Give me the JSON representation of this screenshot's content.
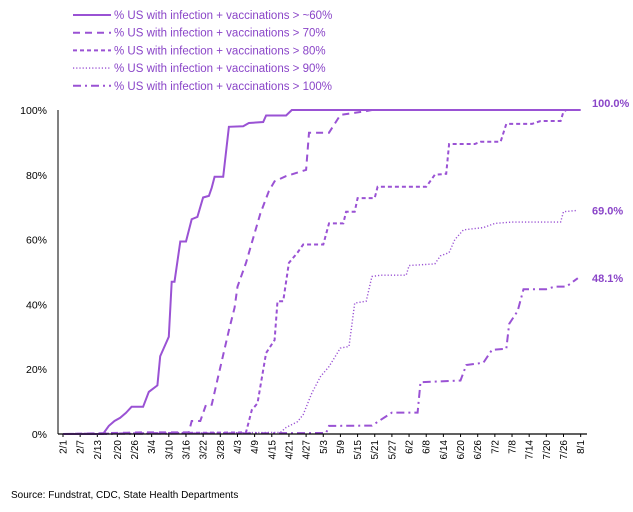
{
  "chart_data": {
    "type": "line",
    "title": "",
    "xlabel": "",
    "ylabel": "",
    "ylim": [
      0,
      100
    ],
    "y_ticks": [
      "0%",
      "20%",
      "40%",
      "60%",
      "80%",
      "100%"
    ],
    "x_ticks": [
      "2/1",
      "2/7",
      "2/13",
      "2/20",
      "2/26",
      "3/4",
      "3/10",
      "3/16",
      "3/22",
      "3/28",
      "4/3",
      "4/9",
      "4/15",
      "4/21",
      "4/27",
      "5/3",
      "5/9",
      "5/15",
      "5/21",
      "5/27",
      "6/2",
      "6/8",
      "6/14",
      "6/20",
      "6/26",
      "7/2",
      "7/8",
      "7/14",
      "7/20",
      "7/26",
      "8/1"
    ],
    "grid": false,
    "legend_position": "top-left",
    "line_color": "#9a52d4",
    "series": [
      {
        "name": "% US with infection + vaccinations > ~60%",
        "style": "solid",
        "end_label": "100.0%",
        "points": [
          [
            "2/1",
            0
          ],
          [
            "2/15",
            0
          ],
          [
            "2/17",
            2.5
          ],
          [
            "2/19",
            4
          ],
          [
            "2/21",
            5
          ],
          [
            "2/23",
            6.5
          ],
          [
            "2/25",
            8.4
          ],
          [
            "3/1",
            8.4
          ],
          [
            "3/3",
            13
          ],
          [
            "3/6",
            15
          ],
          [
            "3/7",
            24
          ],
          [
            "3/10",
            30
          ],
          [
            "3/11",
            47
          ],
          [
            "3/12",
            47
          ],
          [
            "3/14",
            59.4
          ],
          [
            "3/16",
            59.4
          ],
          [
            "3/18",
            66.3
          ],
          [
            "3/20",
            67
          ],
          [
            "3/22",
            73
          ],
          [
            "3/24",
            73.5
          ],
          [
            "3/25",
            76
          ],
          [
            "3/26",
            79.4
          ],
          [
            "3/29",
            79.4
          ],
          [
            "3/31",
            94.8
          ],
          [
            "4/5",
            95
          ],
          [
            "4/7",
            96
          ],
          [
            "4/12",
            96.3
          ],
          [
            "4/13",
            98.3
          ],
          [
            "4/20",
            98.3
          ],
          [
            "4/22",
            100
          ],
          [
            "8/1",
            100
          ]
        ]
      },
      {
        "name": "% US with infection + vaccinations > 70%",
        "style": "long-dash",
        "end_label": "",
        "points": [
          [
            "2/1",
            0
          ],
          [
            "3/1",
            0.5
          ],
          [
            "3/17",
            0.5
          ],
          [
            "3/18",
            4
          ],
          [
            "3/21",
            4
          ],
          [
            "3/23",
            9
          ],
          [
            "3/25",
            9
          ],
          [
            "3/27",
            16.7
          ],
          [
            "3/31",
            32
          ],
          [
            "4/2",
            39
          ],
          [
            "4/3",
            45.5
          ],
          [
            "4/6",
            52.8
          ],
          [
            "4/8",
            59
          ],
          [
            "4/11",
            68
          ],
          [
            "4/14",
            75
          ],
          [
            "4/16",
            78
          ],
          [
            "4/20",
            79.6
          ],
          [
            "4/27",
            81.5
          ],
          [
            "4/28",
            93
          ],
          [
            "5/5",
            93
          ],
          [
            "5/9",
            98.5
          ],
          [
            "5/17",
            99.5
          ],
          [
            "5/20",
            100
          ]
        ]
      },
      {
        "name": "% US with infection + vaccinations > 80%",
        "style": "short-dash",
        "end_label": "",
        "points": [
          [
            "2/1",
            0
          ],
          [
            "3/10",
            0.3
          ],
          [
            "4/6",
            0.5
          ],
          [
            "4/8",
            7.4
          ],
          [
            "4/10",
            9.5
          ],
          [
            "4/13",
            25
          ],
          [
            "4/16",
            29
          ],
          [
            "4/17",
            41
          ],
          [
            "4/19",
            41
          ],
          [
            "4/21",
            52.8
          ],
          [
            "4/24",
            56
          ],
          [
            "4/26",
            58.5
          ],
          [
            "5/3",
            58.5
          ],
          [
            "5/5",
            65
          ],
          [
            "5/10",
            65
          ],
          [
            "5/11",
            68.6
          ],
          [
            "5/14",
            68.6
          ],
          [
            "5/15",
            72.8
          ],
          [
            "5/21",
            72.8
          ],
          [
            "5/22",
            76.3
          ],
          [
            "6/8",
            76.3
          ],
          [
            "6/11",
            80
          ],
          [
            "6/15",
            80.3
          ],
          [
            "6/16",
            89.5
          ],
          [
            "6/25",
            89.5
          ],
          [
            "6/27",
            90.2
          ],
          [
            "7/4",
            90.2
          ],
          [
            "7/6",
            95.7
          ],
          [
            "7/15",
            95.7
          ],
          [
            "7/18",
            96.6
          ],
          [
            "7/25",
            96.6
          ],
          [
            "7/26",
            99.5
          ],
          [
            "7/27",
            100
          ]
        ]
      },
      {
        "name": "% US with infection + vaccinations > 90%",
        "style": "dotted",
        "end_label": "69.0%",
        "points": [
          [
            "2/1",
            0
          ],
          [
            "4/18",
            0.5
          ],
          [
            "4/20",
            2
          ],
          [
            "4/24",
            3.8
          ],
          [
            "4/26",
            6
          ],
          [
            "4/29",
            12.6
          ],
          [
            "5/2",
            17.7
          ],
          [
            "5/5",
            20.8
          ],
          [
            "5/9",
            26.5
          ],
          [
            "5/12",
            27
          ],
          [
            "5/14",
            40.4
          ],
          [
            "5/18",
            41
          ],
          [
            "5/20",
            48.6
          ],
          [
            "5/23",
            49
          ],
          [
            "6/1",
            49
          ],
          [
            "6/2",
            52
          ],
          [
            "6/11",
            52.5
          ],
          [
            "6/13",
            55
          ],
          [
            "6/16",
            56
          ],
          [
            "6/18",
            60
          ],
          [
            "6/21",
            63
          ],
          [
            "6/28",
            63.7
          ],
          [
            "7/2",
            65
          ],
          [
            "7/8",
            65.4
          ],
          [
            "7/25",
            65.4
          ],
          [
            "7/26",
            68.6
          ],
          [
            "7/31",
            69
          ]
        ]
      },
      {
        "name": "% US with infection + vaccinations > 100%",
        "style": "dash-dot",
        "end_label": "48.1%",
        "points": [
          [
            "2/1",
            0
          ],
          [
            "5/4",
            0.3
          ],
          [
            "5/5",
            2.5
          ],
          [
            "5/20",
            2.6
          ],
          [
            "5/27",
            6.6
          ],
          [
            "6/5",
            6.6
          ],
          [
            "6/6",
            16
          ],
          [
            "6/20",
            16.5
          ],
          [
            "6/22",
            21.3
          ],
          [
            "6/28",
            22
          ],
          [
            "7/1",
            26
          ],
          [
            "7/6",
            26.3
          ],
          [
            "7/7",
            34
          ],
          [
            "7/10",
            38
          ],
          [
            "7/12",
            44.7
          ],
          [
            "7/20",
            44.7
          ],
          [
            "7/23",
            45.5
          ],
          [
            "7/27",
            45.5
          ],
          [
            "7/31",
            48.1
          ]
        ]
      }
    ],
    "source": "Source: Fundstrat, CDC, State Health Departments"
  }
}
